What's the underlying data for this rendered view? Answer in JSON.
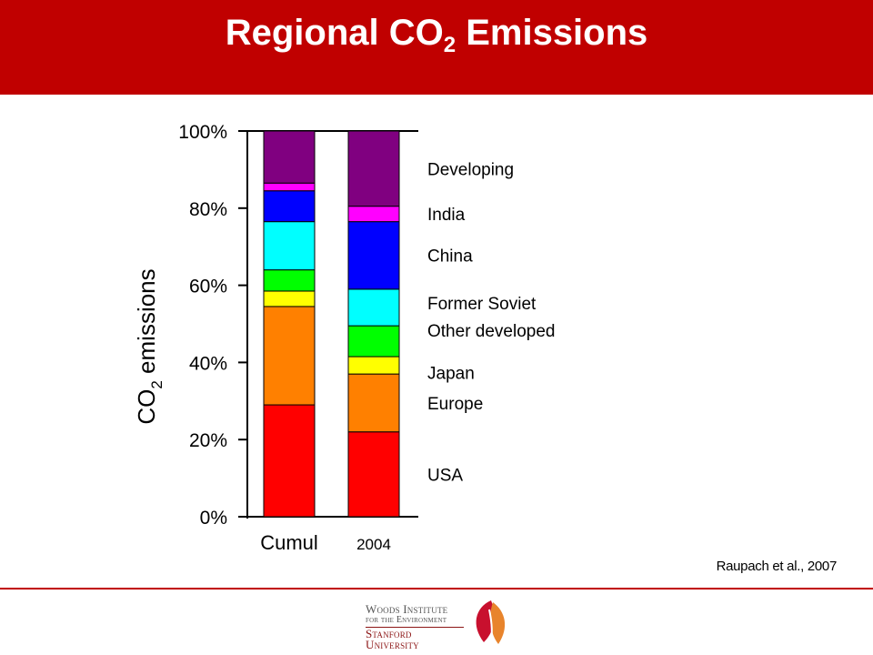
{
  "header": {
    "title_prefix": "Regional CO",
    "title_sub": "2",
    "title_suffix": " Emissions"
  },
  "chart_data": {
    "type": "bar",
    "stacked": true,
    "categories": [
      "Cumul",
      "2004"
    ],
    "ylabel_prefix": "CO",
    "ylabel_sub": "2",
    "ylabel_suffix": " emissions",
    "ylim": [
      0,
      100
    ],
    "yticks": [
      "0%",
      "20%",
      "40%",
      "60%",
      "80%",
      "100%"
    ],
    "series": [
      {
        "name": "USA",
        "color": "#ff0000",
        "values": [
          29,
          22
        ]
      },
      {
        "name": "Europe",
        "color": "#ff8000",
        "values": [
          25.5,
          15
        ]
      },
      {
        "name": "Japan",
        "color": "#ffff00",
        "values": [
          4,
          4.5
        ]
      },
      {
        "name": "Other developed",
        "color": "#00ff00",
        "values": [
          5.5,
          8
        ]
      },
      {
        "name": "Former Soviet",
        "color": "#00ffff",
        "values": [
          12.5,
          9.5
        ]
      },
      {
        "name": "China",
        "color": "#0000ff",
        "values": [
          8,
          17.5
        ]
      },
      {
        "name": "India",
        "color": "#ff00ff",
        "values": [
          2,
          4
        ]
      },
      {
        "name": "Developing",
        "color": "#800080",
        "values": [
          13.5,
          19.5
        ]
      }
    ]
  },
  "citation": "Raupach et al., 2007",
  "logo": {
    "line1": "Woods Institute",
    "line2": "for the Environment",
    "line3": "Stanford University"
  }
}
